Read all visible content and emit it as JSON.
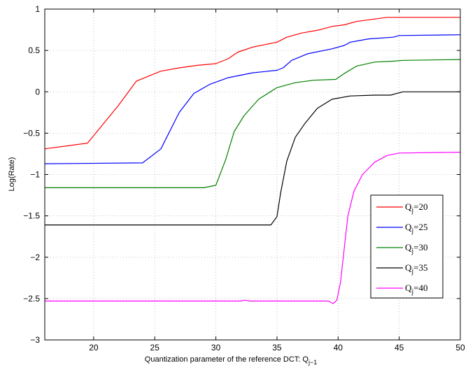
{
  "chart_data": {
    "type": "line",
    "title": "",
    "xlabel": "Quantization parameter of the reference DCT: Q",
    "xlabel_subscript": "j−1",
    "ylabel": "Log(Rate)",
    "xlim": [
      16,
      50
    ],
    "ylim": [
      -3,
      1
    ],
    "xticks": [
      20,
      25,
      30,
      35,
      40,
      45,
      50
    ],
    "xtick_labels": [
      "20",
      "25",
      "30",
      "35",
      "40",
      "45",
      "50"
    ],
    "yticks": [
      1,
      0.5,
      0,
      -0.5,
      -1,
      -1.5,
      -2,
      -2.5,
      -3
    ],
    "ytick_labels": [
      "1",
      "0.5",
      "0",
      "−0.5",
      "−1",
      "−1.5",
      "−2",
      "−2.5",
      "−3"
    ],
    "grid": true,
    "legend_position": "lower-right",
    "series": [
      {
        "label_main": "Q",
        "label_sub": "j",
        "label_rest": "=20",
        "color": "#ff0000",
        "points": [
          [
            16,
            -0.69
          ],
          [
            19.5,
            -0.62
          ],
          [
            22,
            -0.17
          ],
          [
            23.5,
            0.13
          ],
          [
            25.5,
            0.25
          ],
          [
            27,
            0.29
          ],
          [
            28.5,
            0.32
          ],
          [
            30,
            0.34
          ],
          [
            31,
            0.4
          ],
          [
            31.8,
            0.48
          ],
          [
            33,
            0.54
          ],
          [
            34,
            0.57
          ],
          [
            35,
            0.6
          ],
          [
            35.8,
            0.66
          ],
          [
            37,
            0.71
          ],
          [
            38.5,
            0.75
          ],
          [
            39.5,
            0.79
          ],
          [
            40.5,
            0.81
          ],
          [
            41.5,
            0.85
          ],
          [
            43,
            0.88
          ],
          [
            44,
            0.9
          ],
          [
            45,
            0.9
          ],
          [
            46,
            0.9
          ],
          [
            50,
            0.9
          ]
        ]
      },
      {
        "label_main": "Q",
        "label_sub": "j",
        "label_rest": "=25",
        "color": "#0000ff",
        "points": [
          [
            16,
            -0.87
          ],
          [
            24,
            -0.86
          ],
          [
            25.5,
            -0.69
          ],
          [
            27,
            -0.25
          ],
          [
            28.2,
            -0.02
          ],
          [
            29.5,
            0.09
          ],
          [
            31,
            0.17
          ],
          [
            33,
            0.23
          ],
          [
            35,
            0.26
          ],
          [
            35.5,
            0.29
          ],
          [
            36.2,
            0.38
          ],
          [
            37.5,
            0.46
          ],
          [
            39.5,
            0.52
          ],
          [
            40.5,
            0.56
          ],
          [
            41,
            0.6
          ],
          [
            42.5,
            0.64
          ],
          [
            44.5,
            0.66
          ],
          [
            45,
            0.68
          ],
          [
            50,
            0.69
          ]
        ]
      },
      {
        "label_main": "Q",
        "label_sub": "j",
        "label_rest": "=30",
        "color": "#008000",
        "points": [
          [
            16,
            -1.16
          ],
          [
            29,
            -1.16
          ],
          [
            30,
            -1.13
          ],
          [
            30.8,
            -0.82
          ],
          [
            31.5,
            -0.48
          ],
          [
            32.3,
            -0.29
          ],
          [
            33.5,
            -0.09
          ],
          [
            35,
            0.05
          ],
          [
            36.5,
            0.11
          ],
          [
            38,
            0.14
          ],
          [
            39.8,
            0.15
          ],
          [
            40.5,
            0.22
          ],
          [
            41.5,
            0.31
          ],
          [
            43,
            0.36
          ],
          [
            44.5,
            0.37
          ],
          [
            45.3,
            0.38
          ],
          [
            50,
            0.39
          ]
        ]
      },
      {
        "label_main": "Q",
        "label_sub": "j",
        "label_rest": "=35",
        "color": "#000000",
        "points": [
          [
            16,
            -1.61
          ],
          [
            34.5,
            -1.61
          ],
          [
            35,
            -1.51
          ],
          [
            35.3,
            -1.22
          ],
          [
            35.8,
            -0.84
          ],
          [
            36.5,
            -0.55
          ],
          [
            37.3,
            -0.38
          ],
          [
            38.3,
            -0.2
          ],
          [
            39.5,
            -0.09
          ],
          [
            41,
            -0.05
          ],
          [
            43,
            -0.04
          ],
          [
            44.3,
            -0.04
          ],
          [
            44.8,
            -0.02
          ],
          [
            45.3,
            0.0
          ],
          [
            50,
            0.0
          ]
        ]
      },
      {
        "label_main": "Q",
        "label_sub": "j",
        "label_rest": "=40",
        "color": "#ff00ff",
        "points": [
          [
            16,
            -2.53
          ],
          [
            32,
            -2.53
          ],
          [
            32.4,
            -2.52
          ],
          [
            32.8,
            -2.53
          ],
          [
            39.2,
            -2.53
          ],
          [
            39.6,
            -2.56
          ],
          [
            39.9,
            -2.52
          ],
          [
            40.2,
            -2.3
          ],
          [
            40.5,
            -1.9
          ],
          [
            40.8,
            -1.5
          ],
          [
            41.3,
            -1.2
          ],
          [
            42,
            -1.0
          ],
          [
            43,
            -0.85
          ],
          [
            44,
            -0.77
          ],
          [
            45,
            -0.74
          ],
          [
            50,
            -0.73
          ]
        ]
      }
    ]
  }
}
